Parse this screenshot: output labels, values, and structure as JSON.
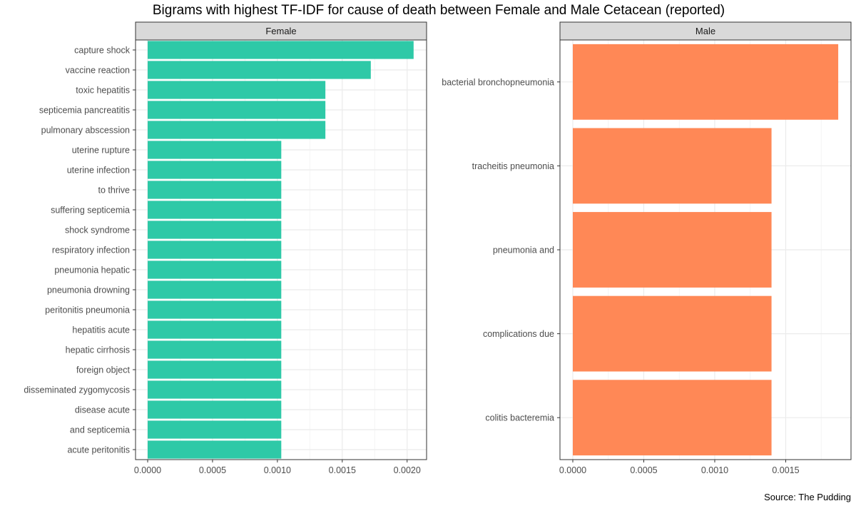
{
  "chart_data": {
    "type": "bar",
    "orientation": "horizontal",
    "title": "Bigrams with highest TF-IDF for cause of death between Female and Male Cetacean (reported)",
    "caption": "Source: The Pudding",
    "grid": true,
    "facets": [
      {
        "name": "Female",
        "color": "#2ec9a7",
        "xlim": [
          0,
          0.00215
        ],
        "ticks": [
          "0.0000",
          "0.0005",
          "0.0010",
          "0.0015",
          "0.0020"
        ],
        "tick_values": [
          0,
          0.0005,
          0.001,
          0.0015,
          0.002
        ],
        "categories": [
          "capture shock",
          "vaccine reaction",
          "toxic hepatitis",
          "septicemia pancreatitis",
          "pulmonary abscession",
          "uterine rupture",
          "uterine infection",
          "to thrive",
          "suffering septicemia",
          "shock syndrome",
          "respiratory infection",
          "pneumonia hepatic",
          "pneumonia drowning",
          "peritonitis pneumonia",
          "hepatitis acute",
          "hepatic cirrhosis",
          "foreign object",
          "disseminated zygomycosis",
          "disease acute",
          "and septicemia",
          "acute peritonitis"
        ],
        "values": [
          0.00205,
          0.00172,
          0.00137,
          0.00137,
          0.00137,
          0.00103,
          0.00103,
          0.00103,
          0.00103,
          0.00103,
          0.00103,
          0.00103,
          0.00103,
          0.00103,
          0.00103,
          0.00103,
          0.00103,
          0.00103,
          0.00103,
          0.00103,
          0.00103
        ]
      },
      {
        "name": "Male",
        "color": "#ff8856",
        "xlim": [
          0,
          0.00196
        ],
        "ticks": [
          "0.0000",
          "0.0005",
          "0.0010",
          "0.0015"
        ],
        "tick_values": [
          0,
          0.0005,
          0.001,
          0.0015
        ],
        "categories": [
          "bacterial bronchopneumonia",
          "tracheitis pneumonia",
          "pneumonia and",
          "complications due",
          "colitis bacteremia"
        ],
        "values": [
          0.00187,
          0.0014,
          0.0014,
          0.0014,
          0.0014
        ]
      }
    ]
  }
}
